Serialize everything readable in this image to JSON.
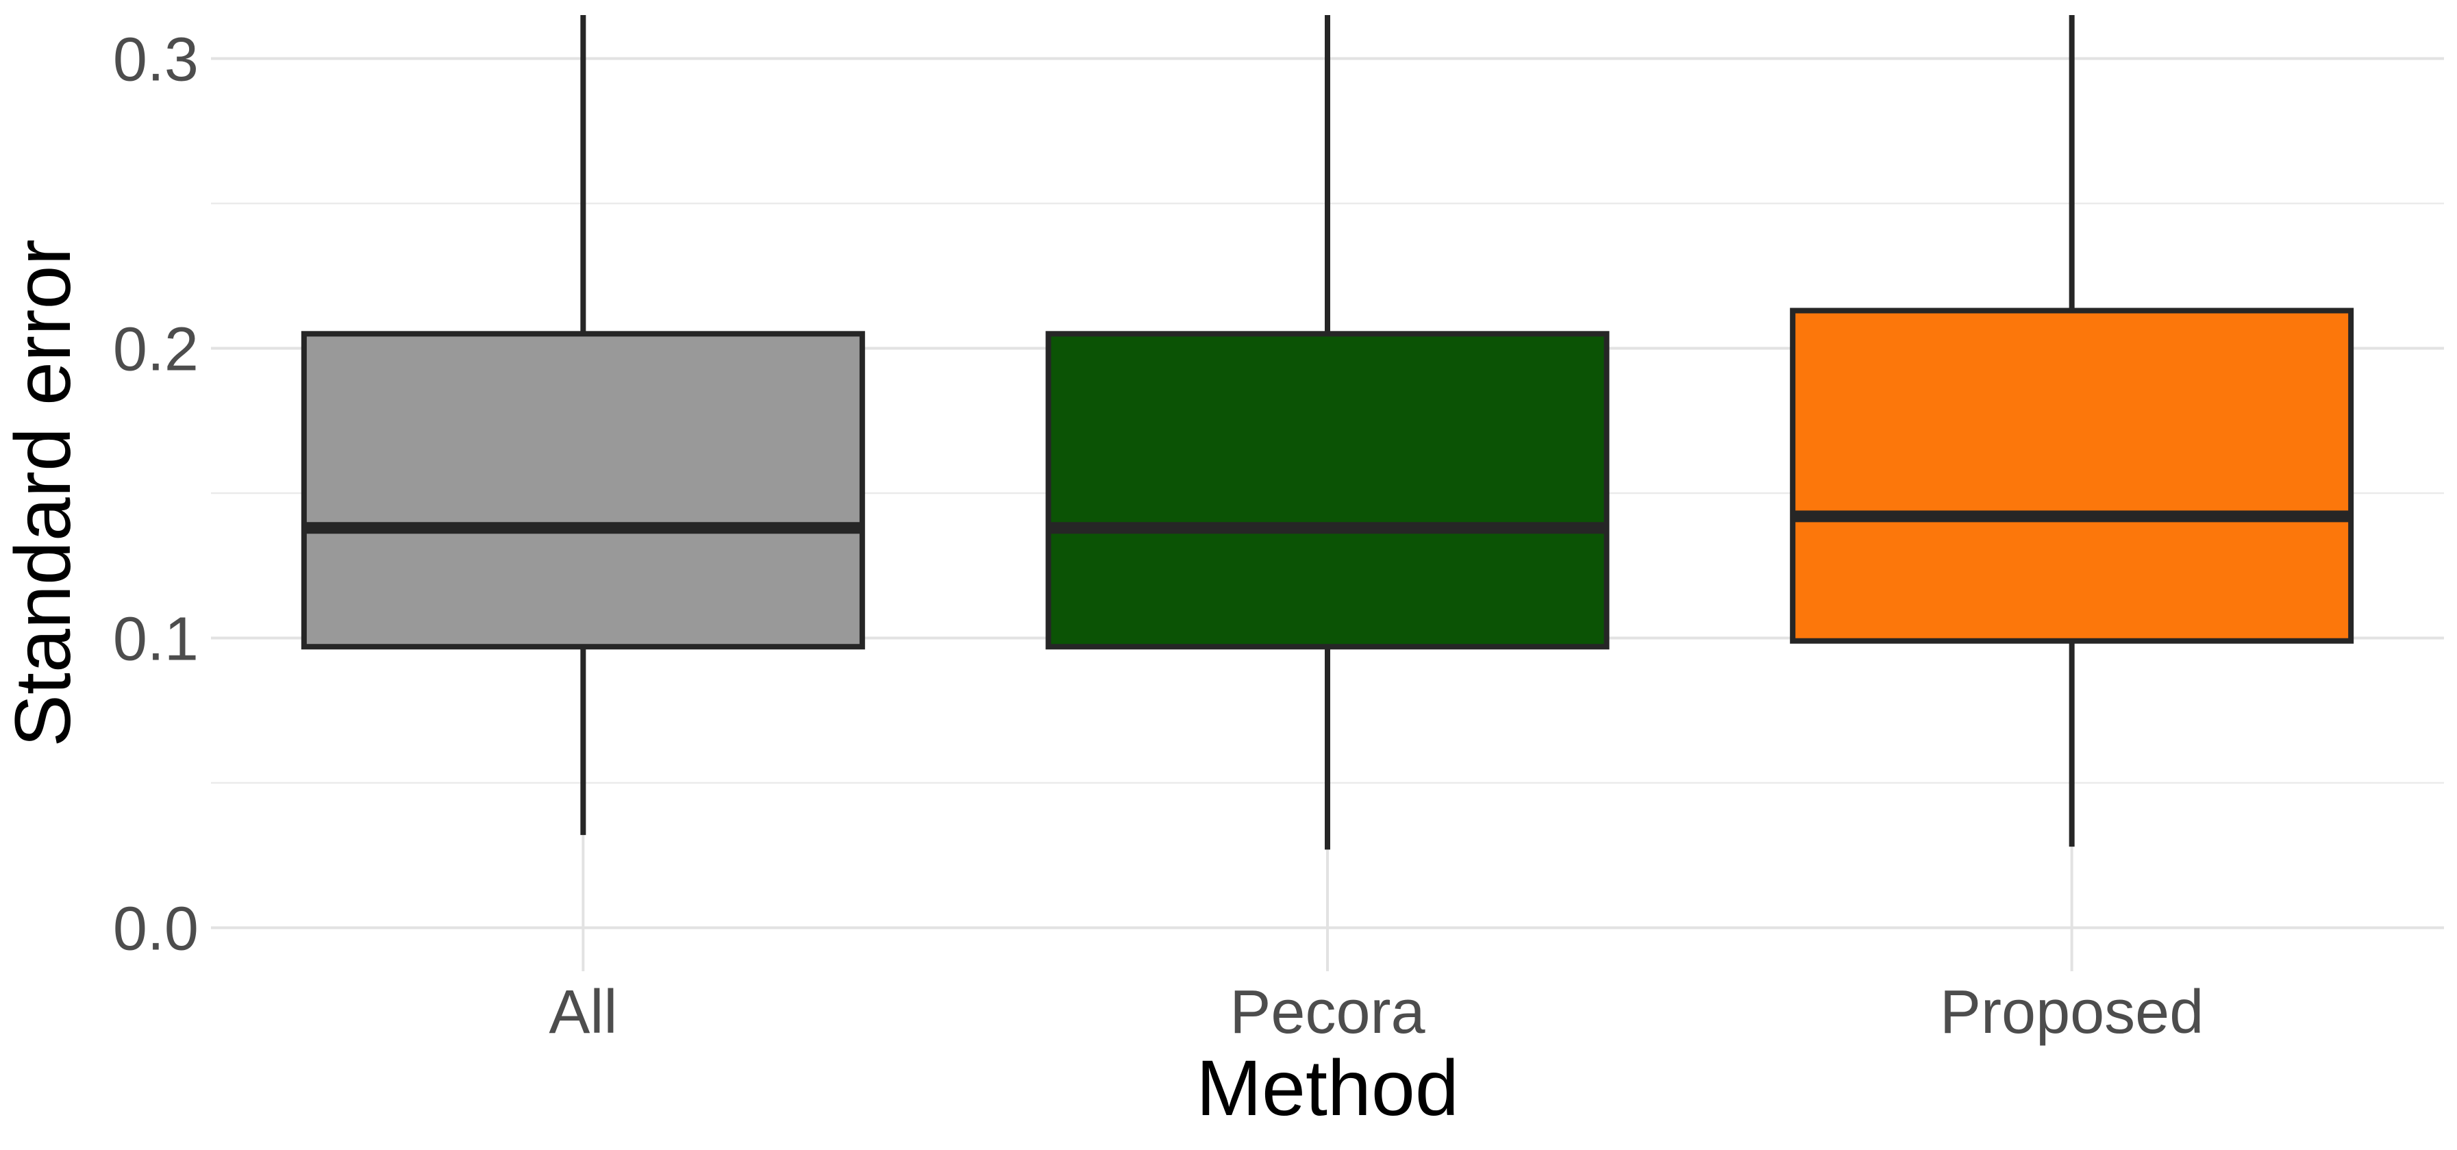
{
  "chart_data": {
    "type": "boxplot",
    "title": "",
    "xlabel": "Method",
    "ylabel": "Standard error",
    "ylim": [
      -0.015,
      0.315
    ],
    "yticks": [
      0.0,
      0.1,
      0.2,
      0.3
    ],
    "ytick_labels": [
      "0.0",
      "0.1",
      "0.2",
      "0.3"
    ],
    "grid": true,
    "legend": "none",
    "categories": [
      "All",
      "Pecora",
      "Proposed"
    ],
    "boxes": [
      {
        "category": "All",
        "color": "#999999",
        "whisker_low": 0.032,
        "q1": 0.097,
        "median": 0.138,
        "q3": 0.205,
        "whisker_high": 0.315
      },
      {
        "category": "Pecora",
        "color": "#0b5305",
        "whisker_low": 0.027,
        "q1": 0.097,
        "median": 0.138,
        "q3": 0.205,
        "whisker_high": 0.315
      },
      {
        "category": "Proposed",
        "color": "#fc770b",
        "whisker_low": 0.028,
        "q1": 0.099,
        "median": 0.142,
        "q3": 0.213,
        "whisker_high": 0.315
      }
    ]
  }
}
